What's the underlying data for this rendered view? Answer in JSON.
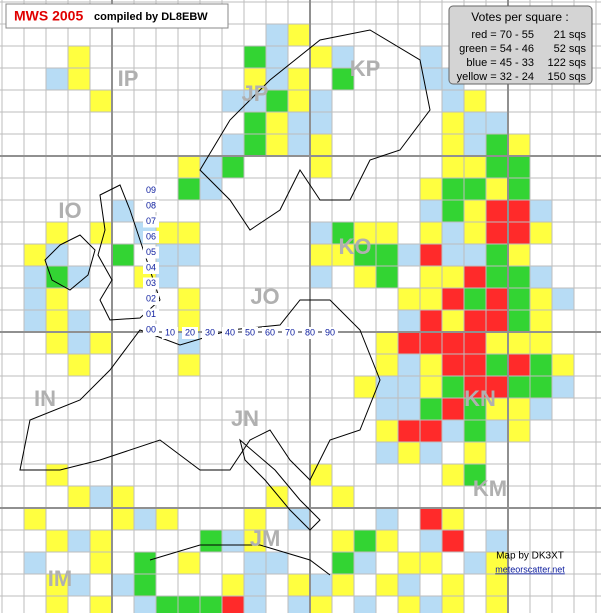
{
  "title": {
    "name": "MWS 2005",
    "credit": "compiled by DL8EBW"
  },
  "legend": {
    "heading": "Votes per square :",
    "rows": [
      {
        "label": "red = 70 - 55",
        "count": "21 sqs",
        "color": "#ff2a2a"
      },
      {
        "label": "green = 54 - 46",
        "count": "52 sqs",
        "color": "#33d433"
      },
      {
        "label": "blue = 45 - 33",
        "count": "122 sqs",
        "color": "#b7dcf5"
      },
      {
        "label": "yellow = 32 - 24",
        "count": "150 sqs",
        "color": "#ffff40"
      }
    ]
  },
  "locators": [
    "IP",
    "JP",
    "KP",
    "IO",
    "JO",
    "KO",
    "IN",
    "JN",
    "KN",
    "IM",
    "JM",
    "KM"
  ],
  "subsquares": {
    "rows": [
      "00",
      "01",
      "02",
      "03",
      "04",
      "05",
      "06",
      "07",
      "08",
      "09"
    ],
    "columns": [
      "10",
      "20",
      "30",
      "40",
      "50",
      "60",
      "70",
      "80",
      "90"
    ]
  },
  "footer": {
    "author": "Map by DK3XT",
    "site": "meteorscatter.net"
  }
}
